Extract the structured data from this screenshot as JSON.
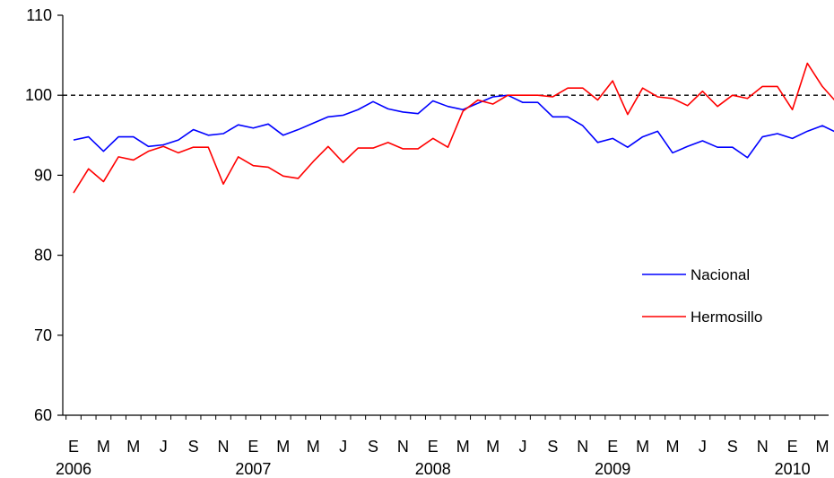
{
  "chart_data": {
    "type": "line",
    "title": "",
    "xlabel": "",
    "ylabel": "",
    "ylim": [
      60,
      110
    ],
    "yticks": [
      60,
      70,
      80,
      90,
      100,
      110
    ],
    "reference_line": {
      "value": 100,
      "style": "dashed",
      "color": "#000000"
    },
    "x_month_labels": [
      "E",
      "M",
      "M",
      "J",
      "S",
      "N",
      "E",
      "M",
      "M",
      "J",
      "S",
      "N",
      "E",
      "M",
      "M",
      "J",
      "S",
      "N",
      "E",
      "M",
      "M",
      "J",
      "S",
      "N",
      "E",
      "M"
    ],
    "x_year_labels": [
      {
        "label": "2006",
        "month_index": 0
      },
      {
        "label": "2007",
        "month_index": 12
      },
      {
        "label": "2008",
        "month_index": 24
      },
      {
        "label": "2009",
        "month_index": 36
      },
      {
        "label": "2010",
        "month_index": 48
      }
    ],
    "x_period": "2006-01 to 2010-04 (monthly)",
    "legend": {
      "position": "right-middle"
    },
    "series": [
      {
        "name": "Nacional",
        "color": "#0000ff",
        "values": [
          94.4,
          94.8,
          93.0,
          94.8,
          94.8,
          93.6,
          93.8,
          94.4,
          95.7,
          95.0,
          95.2,
          96.3,
          95.9,
          96.4,
          95.0,
          95.7,
          96.5,
          97.3,
          97.5,
          98.2,
          99.2,
          98.3,
          97.9,
          97.7,
          99.3,
          98.6,
          98.2,
          99.0,
          99.8,
          100.0,
          99.1,
          99.1,
          97.3,
          97.3,
          96.2,
          94.1,
          94.6,
          93.5,
          94.8,
          95.5,
          92.8,
          93.6,
          94.3,
          93.5,
          93.5,
          92.2,
          94.8,
          95.2,
          94.6,
          95.5,
          96.2,
          95.3
        ]
      },
      {
        "name": "Hermosillo",
        "color": "#ff0000",
        "values": [
          87.8,
          90.8,
          89.2,
          92.3,
          91.9,
          93.0,
          93.6,
          92.8,
          93.5,
          93.5,
          88.9,
          92.3,
          91.2,
          91.0,
          89.9,
          89.6,
          91.7,
          93.6,
          91.6,
          93.4,
          93.4,
          94.1,
          93.3,
          93.3,
          94.6,
          93.5,
          98.0,
          99.4,
          98.9,
          100.0,
          100.0,
          100.0,
          99.8,
          100.9,
          100.9,
          99.4,
          101.8,
          97.6,
          100.9,
          99.8,
          99.6,
          98.7,
          100.5,
          98.6,
          100.0,
          99.6,
          101.1,
          101.1,
          98.2,
          104.0,
          101.1,
          99.0
        ]
      }
    ]
  }
}
